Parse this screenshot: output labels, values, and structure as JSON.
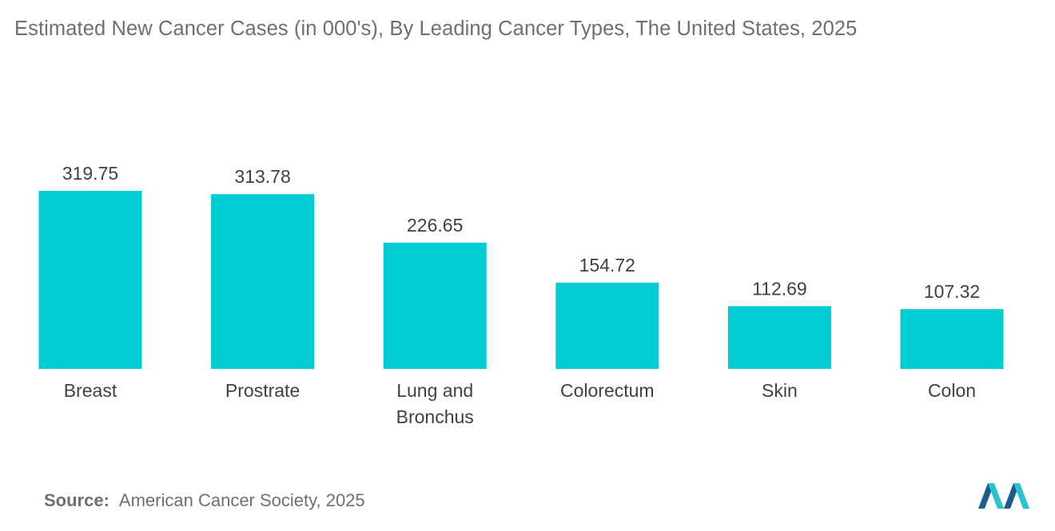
{
  "title": "Estimated New Cancer Cases (in 000's), By Leading Cancer Types, The United States, 2025",
  "source": {
    "prefix": "Source:",
    "text": "American Cancer Society, 2025"
  },
  "logo": {
    "icon": "mordor-intelligence-logo-icon"
  },
  "colors": {
    "bar": "#00CDD2",
    "logo_dark": "#1D5D8C",
    "logo_light": "#25C4CF"
  },
  "chart_data": {
    "type": "bar",
    "title": "Estimated New Cancer Cases (in 000's), By Leading Cancer Types, The United States, 2025",
    "categories": [
      "Breast",
      "Prostrate",
      "Lung and Bronchus",
      "Colorectum",
      "Skin",
      "Colon"
    ],
    "category_lines": [
      [
        "Breast"
      ],
      [
        "Prostrate"
      ],
      [
        "Lung and",
        "Bronchus"
      ],
      [
        "Colorectum"
      ],
      [
        "Skin"
      ],
      [
        "Colon"
      ]
    ],
    "values": [
      319.75,
      313.78,
      226.65,
      154.72,
      112.69,
      107.32
    ],
    "value_labels": [
      "319.75",
      "313.78",
      "226.65",
      "154.72",
      "112.69",
      "107.32"
    ],
    "xlabel": "",
    "ylabel": "",
    "ylim": [
      0,
      319.75
    ],
    "grid": false,
    "legend": "none"
  }
}
